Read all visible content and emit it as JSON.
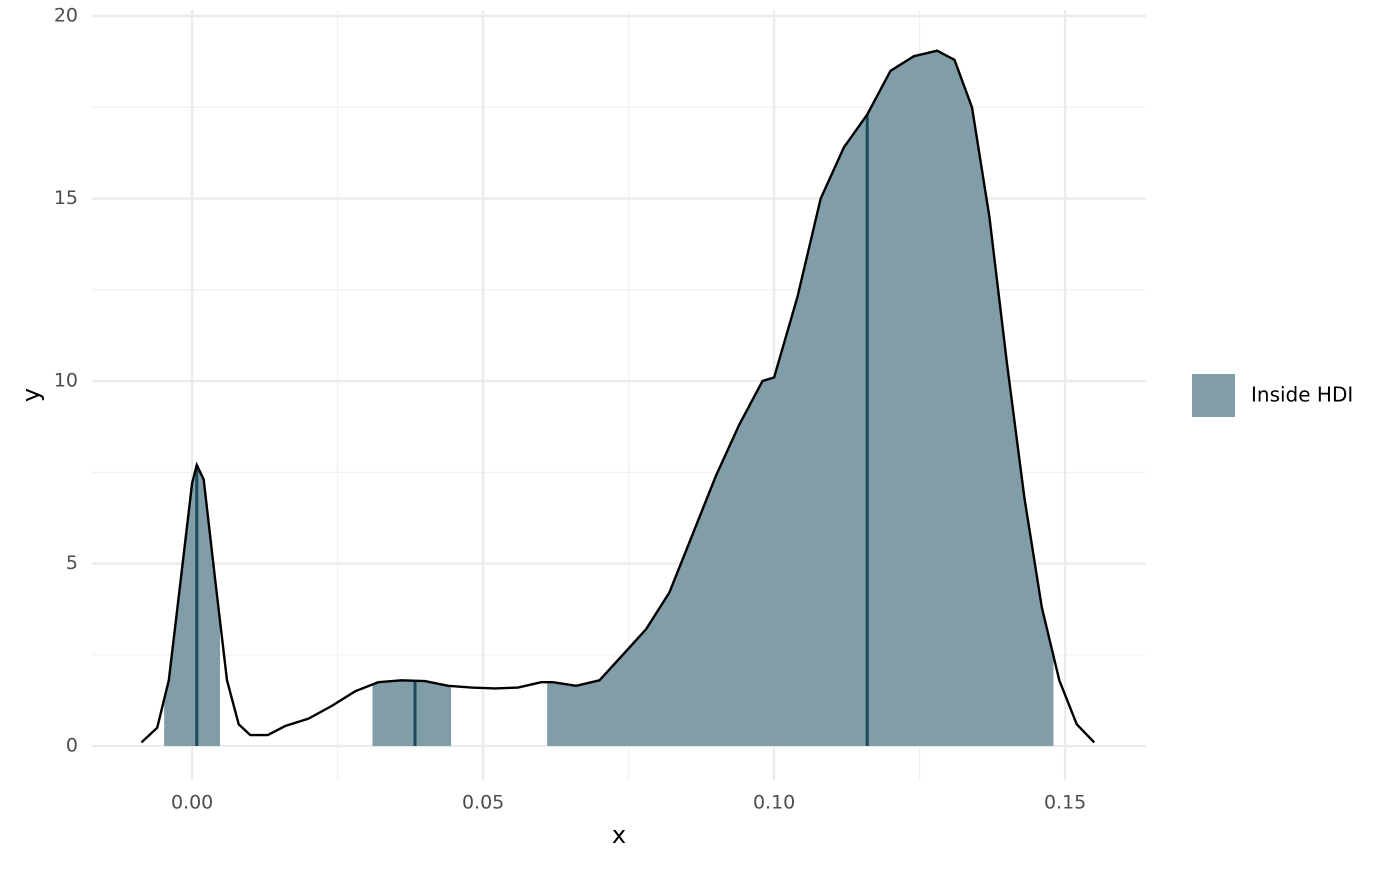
{
  "chart_data": {
    "type": "density",
    "x_label": "x",
    "y_label": "y",
    "x": [
      -0.0087,
      -0.006,
      -0.004,
      -0.002,
      0.0,
      0.0008,
      0.002,
      0.004,
      0.006,
      0.008,
      0.01,
      0.013,
      0.016,
      0.02,
      0.024,
      0.028,
      0.032,
      0.036,
      0.04,
      0.044,
      0.048,
      0.052,
      0.056,
      0.06,
      0.062,
      0.066,
      0.07,
      0.074,
      0.078,
      0.082,
      0.086,
      0.09,
      0.094,
      0.098,
      0.1,
      0.104,
      0.108,
      0.112,
      0.116,
      0.12,
      0.124,
      0.128,
      0.131,
      0.134,
      0.137,
      0.14,
      0.143,
      0.146,
      0.149,
      0.152,
      0.155
    ],
    "series": [
      {
        "name": "Inside HDI",
        "color": "#819da7",
        "line_color": "#000000",
        "values": [
          0.1,
          0.5,
          1.8,
          4.5,
          7.2,
          7.7,
          7.3,
          4.5,
          1.8,
          0.6,
          0.3,
          0.3,
          0.55,
          0.75,
          1.1,
          1.5,
          1.75,
          1.8,
          1.78,
          1.65,
          1.6,
          1.58,
          1.6,
          1.75,
          1.75,
          1.65,
          1.8,
          2.5,
          3.2,
          4.2,
          5.8,
          7.4,
          8.8,
          10.0,
          10.1,
          12.3,
          15.0,
          16.4,
          17.3,
          18.5,
          18.9,
          19.05,
          18.8,
          17.5,
          14.5,
          10.5,
          6.8,
          3.8,
          1.8,
          0.6,
          0.1
        ]
      }
    ],
    "hdi": [
      [
        -0.0048,
        0.0048
      ],
      [
        0.031,
        0.0445
      ],
      [
        0.061,
        0.148
      ]
    ],
    "center_lines": [
      0.0008,
      0.0383,
      0.116
    ],
    "center_line_color": "#1b4a5c",
    "xlim": [
      -0.0172,
      0.1639
    ],
    "ylim": [
      -0.93,
      20
    ],
    "xticks": [
      {
        "value": 0,
        "label": "0.00"
      },
      {
        "value": 0.05,
        "label": "0.05"
      },
      {
        "value": 0.1,
        "label": "0.10"
      },
      {
        "value": 0.15,
        "label": "0.15"
      }
    ],
    "yticks": [
      0,
      5,
      10,
      15,
      20
    ],
    "grid": true
  }
}
